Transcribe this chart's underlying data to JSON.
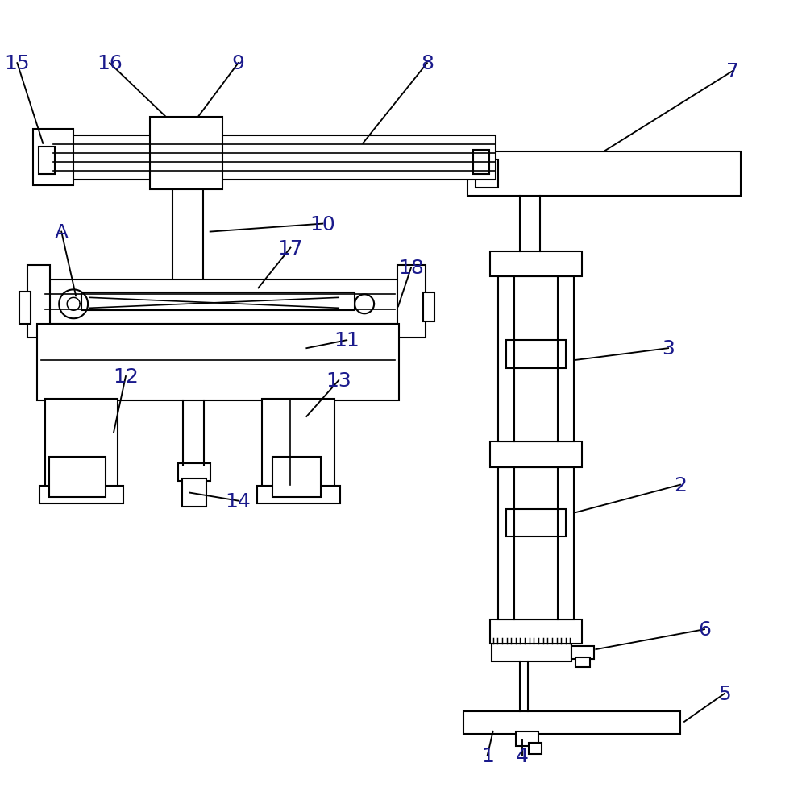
{
  "bg_color": "#ffffff",
  "line_color": "#000000",
  "lw": 1.5,
  "fig_w": 10.0,
  "fig_h": 9.78
}
